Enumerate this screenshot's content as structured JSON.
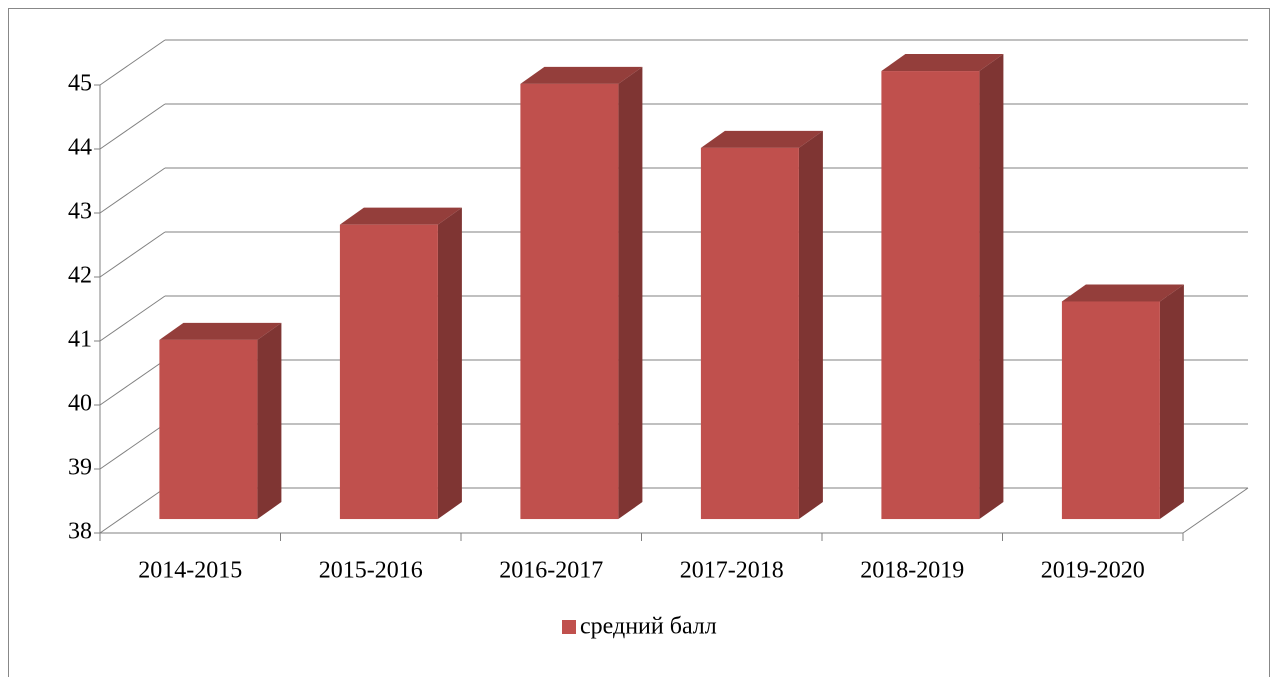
{
  "chart_data": {
    "type": "bar3d",
    "categories": [
      "2014-2015",
      "2015-2016",
      "2016-2017",
      "2017-2018",
      "2018-2019",
      "2019-2020"
    ],
    "series": [
      {
        "name": "средний балл",
        "color": "#c0504d",
        "values": [
          40.8,
          42.6,
          44.8,
          43.8,
          45.0,
          41.4
        ]
      }
    ],
    "ylim": [
      38,
      45
    ],
    "yticks": [
      38,
      39,
      40,
      41,
      42,
      43,
      44,
      45
    ],
    "grid": true,
    "legend": "bottom"
  }
}
